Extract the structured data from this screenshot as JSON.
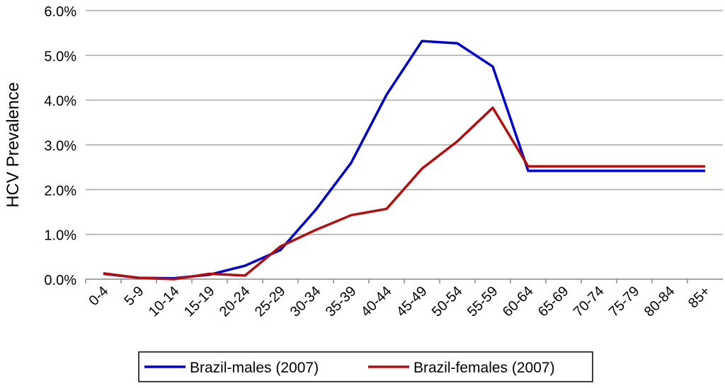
{
  "chart_data": {
    "type": "line",
    "title": "",
    "xlabel": "",
    "ylabel": "HCV Prevalence",
    "ylim": [
      0,
      6
    ],
    "yticks": [
      "0.0%",
      "1.0%",
      "2.0%",
      "3.0%",
      "4.0%",
      "5.0%",
      "6.0%"
    ],
    "grid": true,
    "legend_position": "bottom",
    "categories": [
      "0-4",
      "5-9",
      "10-14",
      "15-19",
      "20-24",
      "25-29",
      "30-34",
      "35-39",
      "40-44",
      "45-49",
      "50-54",
      "55-59",
      "60-64",
      "65-69",
      "70-74",
      "75-79",
      "80-84",
      "85+"
    ],
    "series": [
      {
        "name": "Brazil-males (2007)",
        "color": "#0000cc",
        "values": [
          0.12,
          0.03,
          0.02,
          0.1,
          0.3,
          0.65,
          1.55,
          2.6,
          4.12,
          5.32,
          5.27,
          4.75,
          2.42,
          2.42,
          2.42,
          2.42,
          2.42,
          2.42
        ]
      },
      {
        "name": "Brazil-females (2007)",
        "color": "#b01010",
        "values": [
          0.13,
          0.03,
          0.0,
          0.12,
          0.08,
          0.73,
          1.1,
          1.43,
          1.57,
          2.47,
          3.08,
          3.83,
          2.52,
          2.52,
          2.52,
          2.52,
          2.52,
          2.52
        ]
      }
    ]
  }
}
